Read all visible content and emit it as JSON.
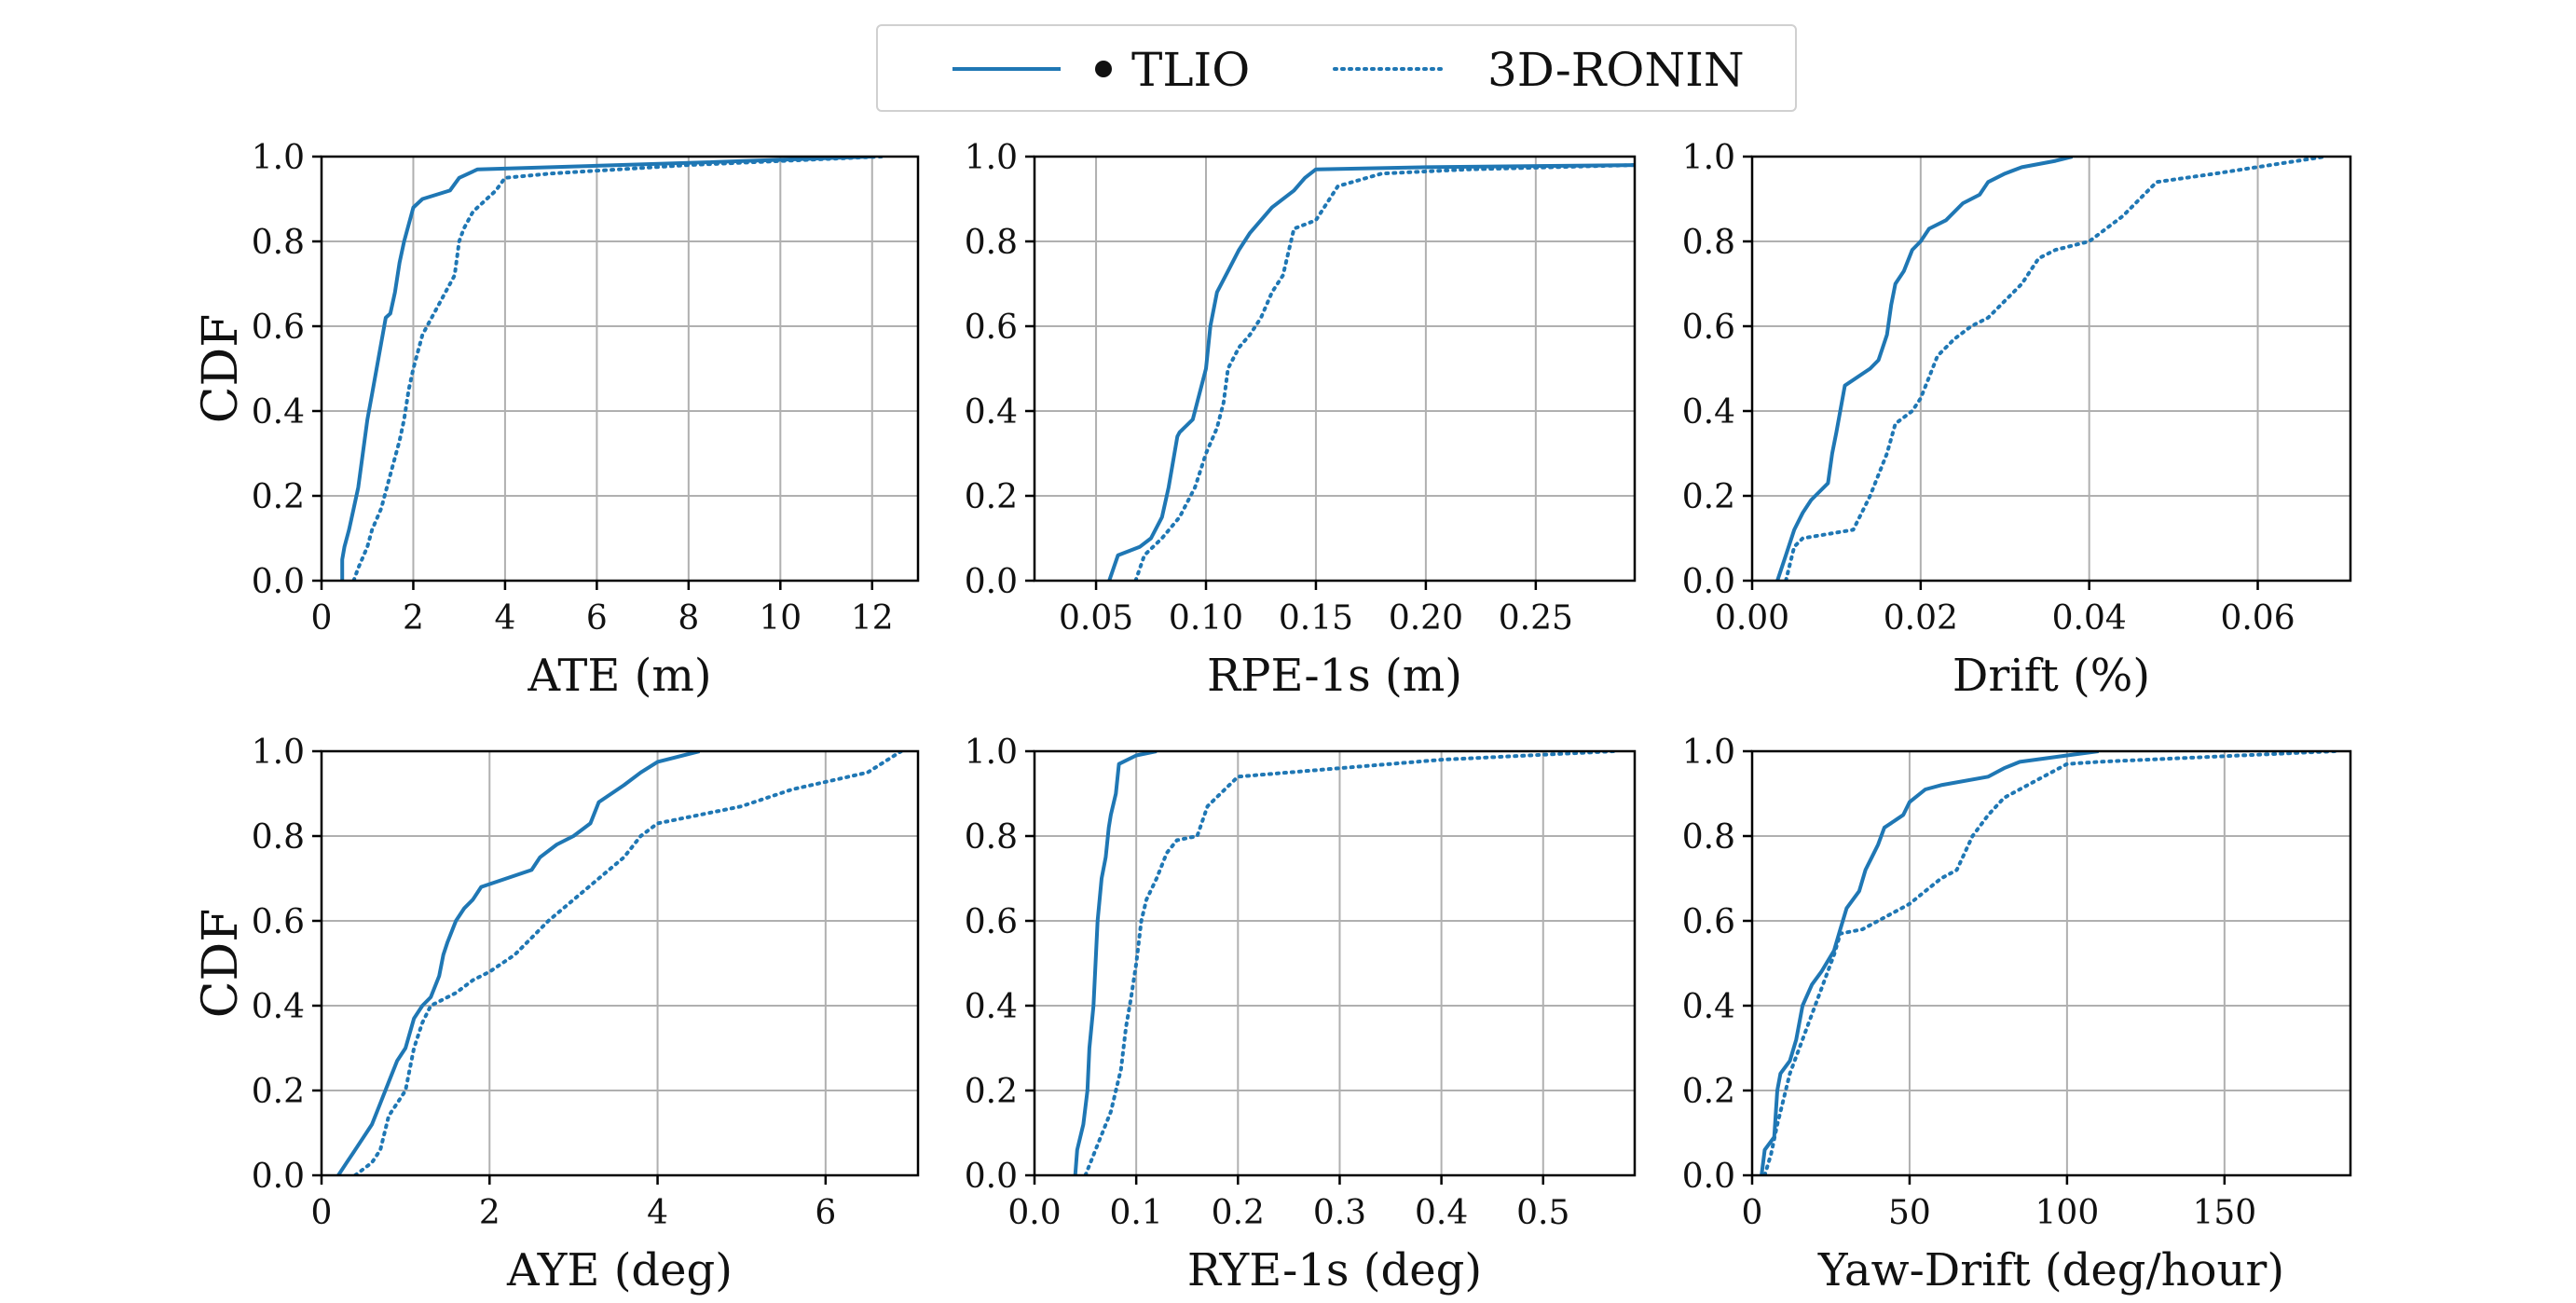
{
  "legend": {
    "entries": [
      {
        "label": "TLIO",
        "style": "solid",
        "color": "#1f77b4"
      },
      {
        "label": "3D-RONIN",
        "style": "dotted",
        "color": "#1f77b4"
      }
    ]
  },
  "colors": {
    "series": "#1f77b4",
    "grid": "#b0b0b0",
    "axis": "#000000"
  },
  "chart_data": [
    {
      "type": "line",
      "xlabel": "ATE (m)",
      "ylabel": "CDF",
      "xlim": [
        0,
        13
      ],
      "ylim": [
        0,
        1
      ],
      "xticks": [
        0,
        2,
        4,
        6,
        8,
        10,
        12
      ],
      "xtick_labels": [
        "0",
        "2",
        "4",
        "6",
        "8",
        "10",
        "12"
      ],
      "yticks": [
        0,
        0.2,
        0.4,
        0.6,
        0.8,
        1.0
      ],
      "ytick_labels": [
        "0.0",
        "0.2",
        "0.4",
        "0.6",
        "0.8",
        "1.0"
      ],
      "grid": true,
      "series": [
        {
          "name": "TLIO",
          "style": "solid",
          "x": [
            0.45,
            0.45,
            0.5,
            0.6,
            0.7,
            0.8,
            0.9,
            1.0,
            1.1,
            1.2,
            1.3,
            1.4,
            1.5,
            1.6,
            1.7,
            1.8,
            2.0,
            2.2,
            2.8,
            3.0,
            3.4,
            5,
            8,
            12
          ],
          "y": [
            0,
            0.05,
            0.08,
            0.12,
            0.17,
            0.22,
            0.3,
            0.38,
            0.44,
            0.5,
            0.56,
            0.62,
            0.63,
            0.68,
            0.75,
            0.8,
            0.88,
            0.9,
            0.92,
            0.95,
            0.97,
            0.975,
            0.985,
            1.0
          ]
        },
        {
          "name": "3D-RONIN",
          "style": "dotted",
          "x": [
            0.7,
            0.8,
            1.0,
            1.1,
            1.3,
            1.5,
            1.7,
            1.8,
            1.9,
            2.0,
            2.2,
            2.6,
            2.9,
            3.0,
            3.1,
            3.3,
            3.8,
            4.0,
            5,
            8,
            12.2
          ],
          "y": [
            0,
            0.03,
            0.08,
            0.12,
            0.17,
            0.25,
            0.33,
            0.38,
            0.45,
            0.5,
            0.58,
            0.66,
            0.72,
            0.8,
            0.83,
            0.87,
            0.92,
            0.95,
            0.96,
            0.98,
            1.0
          ]
        }
      ]
    },
    {
      "type": "line",
      "xlabel": "RPE-1s (m)",
      "ylabel": "",
      "xlim": [
        0.022,
        0.295
      ],
      "ylim": [
        0,
        1
      ],
      "xticks": [
        0.05,
        0.1,
        0.15,
        0.2,
        0.25
      ],
      "xtick_labels": [
        "0.05",
        "0.10",
        "0.15",
        "0.20",
        "0.25"
      ],
      "yticks": [
        0,
        0.2,
        0.4,
        0.6,
        0.8,
        1.0
      ],
      "ytick_labels": [
        "0.0",
        "0.2",
        "0.4",
        "0.6",
        "0.8",
        "1.0"
      ],
      "grid": true,
      "series": [
        {
          "name": "TLIO",
          "style": "solid",
          "x": [
            0.056,
            0.06,
            0.07,
            0.075,
            0.08,
            0.083,
            0.085,
            0.087,
            0.088,
            0.094,
            0.1,
            0.102,
            0.105,
            0.11,
            0.115,
            0.12,
            0.13,
            0.14,
            0.145,
            0.15,
            0.2,
            0.295
          ],
          "y": [
            0,
            0.06,
            0.08,
            0.1,
            0.15,
            0.22,
            0.28,
            0.34,
            0.35,
            0.38,
            0.5,
            0.6,
            0.68,
            0.73,
            0.78,
            0.82,
            0.88,
            0.92,
            0.95,
            0.97,
            0.975,
            0.98
          ]
        },
        {
          "name": "3D-RONIN",
          "style": "dotted",
          "x": [
            0.068,
            0.072,
            0.08,
            0.088,
            0.095,
            0.1,
            0.105,
            0.108,
            0.11,
            0.115,
            0.12,
            0.125,
            0.13,
            0.135,
            0.14,
            0.15,
            0.16,
            0.18,
            0.22,
            0.295
          ],
          "y": [
            0,
            0.06,
            0.1,
            0.15,
            0.22,
            0.3,
            0.36,
            0.42,
            0.5,
            0.55,
            0.58,
            0.62,
            0.68,
            0.72,
            0.83,
            0.85,
            0.93,
            0.96,
            0.97,
            0.98
          ]
        }
      ]
    },
    {
      "type": "line",
      "xlabel": "Drift (%)",
      "ylabel": "",
      "xlim": [
        0,
        0.071
      ],
      "ylim": [
        0,
        1
      ],
      "xticks": [
        0,
        0.02,
        0.04,
        0.06
      ],
      "xtick_labels": [
        "0.00",
        "0.02",
        "0.04",
        "0.06"
      ],
      "yticks": [
        0,
        0.2,
        0.4,
        0.6,
        0.8,
        1.0
      ],
      "ytick_labels": [
        "0.0",
        "0.2",
        "0.4",
        "0.6",
        "0.8",
        "1.0"
      ],
      "grid": true,
      "series": [
        {
          "name": "TLIO",
          "style": "solid",
          "x": [
            0.003,
            0.004,
            0.005,
            0.006,
            0.007,
            0.008,
            0.009,
            0.0095,
            0.01,
            0.011,
            0.014,
            0.015,
            0.016,
            0.0165,
            0.017,
            0.018,
            0.019,
            0.02,
            0.021,
            0.023,
            0.025,
            0.027,
            0.028,
            0.03,
            0.032,
            0.036,
            0.038
          ],
          "y": [
            0,
            0.06,
            0.12,
            0.16,
            0.19,
            0.21,
            0.23,
            0.3,
            0.35,
            0.46,
            0.5,
            0.52,
            0.58,
            0.65,
            0.7,
            0.73,
            0.78,
            0.8,
            0.83,
            0.85,
            0.89,
            0.91,
            0.94,
            0.96,
            0.975,
            0.99,
            1.0
          ]
        },
        {
          "name": "3D-RONIN",
          "style": "dotted",
          "x": [
            0.004,
            0.005,
            0.006,
            0.012,
            0.0135,
            0.014,
            0.015,
            0.016,
            0.017,
            0.019,
            0.02,
            0.021,
            0.022,
            0.024,
            0.026,
            0.028,
            0.03,
            0.032,
            0.034,
            0.036,
            0.04,
            0.044,
            0.046,
            0.048,
            0.055,
            0.068
          ],
          "y": [
            0,
            0.08,
            0.1,
            0.12,
            0.18,
            0.2,
            0.25,
            0.3,
            0.37,
            0.4,
            0.43,
            0.48,
            0.53,
            0.57,
            0.6,
            0.62,
            0.66,
            0.7,
            0.76,
            0.78,
            0.8,
            0.86,
            0.9,
            0.94,
            0.96,
            1.0
          ]
        }
      ]
    },
    {
      "type": "line",
      "xlabel": "AYE (deg)",
      "ylabel": "CDF",
      "xlim": [
        0,
        7.1
      ],
      "ylim": [
        0,
        1
      ],
      "xticks": [
        0,
        2,
        4,
        6
      ],
      "xtick_labels": [
        "0",
        "2",
        "4",
        "6"
      ],
      "yticks": [
        0,
        0.2,
        0.4,
        0.6,
        0.8,
        1.0
      ],
      "ytick_labels": [
        "0.0",
        "0.2",
        "0.4",
        "0.6",
        "0.8",
        "1.0"
      ],
      "grid": true,
      "series": [
        {
          "name": "TLIO",
          "style": "solid",
          "x": [
            0.2,
            0.3,
            0.4,
            0.6,
            0.7,
            0.8,
            0.9,
            1.0,
            1.1,
            1.2,
            1.3,
            1.4,
            1.45,
            1.5,
            1.6,
            1.7,
            1.8,
            1.9,
            2.5,
            2.6,
            2.8,
            3.0,
            3.2,
            3.3,
            3.6,
            3.8,
            4.0,
            4.5
          ],
          "y": [
            0,
            0.03,
            0.06,
            0.12,
            0.17,
            0.22,
            0.27,
            0.3,
            0.37,
            0.4,
            0.42,
            0.47,
            0.52,
            0.55,
            0.6,
            0.63,
            0.65,
            0.68,
            0.72,
            0.75,
            0.78,
            0.8,
            0.83,
            0.88,
            0.92,
            0.95,
            0.975,
            1.0
          ]
        },
        {
          "name": "3D-RONIN",
          "style": "dotted",
          "x": [
            0.4,
            0.6,
            0.7,
            0.75,
            0.8,
            0.9,
            1.0,
            1.05,
            1.1,
            1.2,
            1.3,
            1.6,
            1.8,
            2.0,
            2.3,
            2.5,
            2.7,
            3.0,
            3.3,
            3.6,
            3.8,
            4.0,
            4.5,
            5.0,
            5.6,
            6.5,
            6.9
          ],
          "y": [
            0,
            0.03,
            0.06,
            0.1,
            0.14,
            0.17,
            0.2,
            0.25,
            0.3,
            0.36,
            0.4,
            0.43,
            0.46,
            0.48,
            0.52,
            0.56,
            0.6,
            0.65,
            0.7,
            0.75,
            0.8,
            0.83,
            0.85,
            0.87,
            0.91,
            0.95,
            1.0
          ]
        }
      ]
    },
    {
      "type": "line",
      "xlabel": "RYE-1s (deg)",
      "ylabel": "",
      "xlim": [
        0,
        0.59
      ],
      "ylim": [
        0,
        1
      ],
      "xticks": [
        0,
        0.1,
        0.2,
        0.3,
        0.4,
        0.5
      ],
      "xtick_labels": [
        "0.0",
        "0.1",
        "0.2",
        "0.3",
        "0.4",
        "0.5"
      ],
      "yticks": [
        0,
        0.2,
        0.4,
        0.6,
        0.8,
        1.0
      ],
      "ytick_labels": [
        "0.0",
        "0.2",
        "0.4",
        "0.6",
        "0.8",
        "1.0"
      ],
      "grid": true,
      "series": [
        {
          "name": "TLIO",
          "style": "solid",
          "x": [
            0.04,
            0.042,
            0.048,
            0.052,
            0.054,
            0.058,
            0.06,
            0.062,
            0.066,
            0.07,
            0.073,
            0.075,
            0.08,
            0.083,
            0.1,
            0.12
          ],
          "y": [
            0,
            0.06,
            0.12,
            0.2,
            0.3,
            0.4,
            0.5,
            0.6,
            0.7,
            0.75,
            0.82,
            0.85,
            0.9,
            0.97,
            0.99,
            1.0
          ]
        },
        {
          "name": "3D-RONIN",
          "style": "dotted",
          "x": [
            0.05,
            0.06,
            0.075,
            0.085,
            0.09,
            0.095,
            0.1,
            0.105,
            0.11,
            0.12,
            0.13,
            0.14,
            0.16,
            0.17,
            0.2,
            0.3,
            0.4,
            0.57
          ],
          "y": [
            0,
            0.06,
            0.15,
            0.25,
            0.35,
            0.42,
            0.5,
            0.6,
            0.65,
            0.7,
            0.76,
            0.79,
            0.8,
            0.87,
            0.94,
            0.96,
            0.98,
            1.0
          ]
        }
      ]
    },
    {
      "type": "line",
      "xlabel": "Yaw-Drift (deg/hour)",
      "ylabel": "",
      "xlim": [
        0,
        190
      ],
      "ylim": [
        0,
        1
      ],
      "xticks": [
        0,
        50,
        100,
        150
      ],
      "xtick_labels": [
        "0",
        "50",
        "100",
        "150"
      ],
      "yticks": [
        0,
        0.2,
        0.4,
        0.6,
        0.8,
        1.0
      ],
      "ytick_labels": [
        "0.0",
        "0.2",
        "0.4",
        "0.6",
        "0.8",
        "1.0"
      ],
      "grid": true,
      "series": [
        {
          "name": "TLIO",
          "style": "solid",
          "x": [
            3,
            4,
            7,
            8,
            9,
            12,
            14,
            16,
            19,
            22,
            26,
            28,
            30,
            34,
            36,
            38,
            40,
            42,
            44,
            48,
            50,
            55,
            60,
            75,
            80,
            85,
            100,
            110
          ],
          "y": [
            0,
            0.06,
            0.09,
            0.2,
            0.24,
            0.27,
            0.32,
            0.4,
            0.45,
            0.48,
            0.53,
            0.58,
            0.63,
            0.67,
            0.72,
            0.75,
            0.78,
            0.82,
            0.83,
            0.85,
            0.88,
            0.91,
            0.92,
            0.94,
            0.96,
            0.975,
            0.99,
            1.0
          ]
        },
        {
          "name": "3D-RONIN",
          "style": "dotted",
          "x": [
            4,
            6,
            8,
            10,
            12,
            15,
            18,
            20,
            23,
            26,
            28,
            35,
            40,
            45,
            50,
            55,
            60,
            65,
            70,
            75,
            80,
            90,
            100,
            110,
            185
          ],
          "y": [
            0,
            0.05,
            0.12,
            0.18,
            0.24,
            0.3,
            0.36,
            0.4,
            0.46,
            0.52,
            0.57,
            0.58,
            0.6,
            0.62,
            0.64,
            0.67,
            0.7,
            0.72,
            0.8,
            0.85,
            0.89,
            0.93,
            0.97,
            0.975,
            1.0
          ]
        }
      ]
    }
  ]
}
